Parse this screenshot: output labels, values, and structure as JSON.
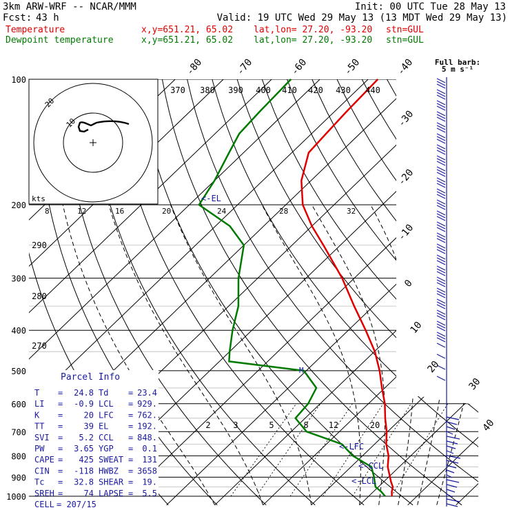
{
  "header": {
    "model": "3km ARW-WRF -- NCAR/MMM",
    "init": "Init: 00 UTC Tue 28 May 13",
    "fcst_label": "Fcst:",
    "fcst_value": "43 h",
    "valid": "Valid: 19 UTC Wed 29 May 13 (13 MDT Wed 29 May 13)"
  },
  "legend": {
    "temperature": {
      "label": "Temperature",
      "xy": "x,y=651.21, 65.02",
      "latlon": "lat,lon= 27.20, -93.20",
      "stn": "stn=GUL",
      "color": "#e00000"
    },
    "dewpoint": {
      "label": "Dewpoint temperature",
      "xy": "x,y=651.21, 65.02",
      "latlon": "lat,lon= 27.20, -93.20",
      "stn": "stn=GUL",
      "color": "#007a00"
    }
  },
  "barb_legend": {
    "title": "Full barb:",
    "unit": "5 m s⁻¹"
  },
  "hodograph": {
    "units": "kts",
    "ring_labels": [
      "10",
      "20"
    ],
    "scale_labels": [
      "8",
      "12",
      "16",
      "20",
      "24",
      "28",
      "32"
    ]
  },
  "parcel": {
    "title": "Parcel Info",
    "rows": [
      {
        "k1": "T",
        "v1": "24.8",
        "k2": "Td",
        "v2": "23.4"
      },
      {
        "k1": "LI",
        "v1": "-0.9",
        "k2": "LCL",
        "v2": "929."
      },
      {
        "k1": "K",
        "v1": "20",
        "k2": "LFC",
        "v2": "762."
      },
      {
        "k1": "TT",
        "v1": "39",
        "k2": "EL",
        "v2": "192."
      },
      {
        "k1": "SVI",
        "v1": "5.2",
        "k2": "CCL",
        "v2": "848."
      },
      {
        "k1": "PW",
        "v1": "3.65",
        "k2": "YGP",
        "v2": "0.1"
      },
      {
        "k1": "CAPE",
        "v1": "425",
        "k2": "SWEAT",
        "v2": "131"
      },
      {
        "k1": "CIN",
        "v1": "-118",
        "k2": "HWBZ",
        "v2": "3658"
      },
      {
        "k1": "Tc",
        "v1": "32.8",
        "k2": "SHEAR",
        "v2": "19."
      },
      {
        "k1": "SREH",
        "v1": "74",
        "k2": "LAPSE",
        "v2": "5.5"
      },
      {
        "k1": "CELL",
        "v1": "207/15",
        "k2": "",
        "v2": ""
      }
    ]
  },
  "levels": {
    "el": "<-EL",
    "lfc": "<-LFC",
    "ccl": "<-CCL",
    "lcl": "<-LCL"
  },
  "chart_data": {
    "type": "line",
    "pressure_labels": [
      "100",
      "200",
      "300",
      "400",
      "500",
      "600",
      "700",
      "800",
      "900",
      "1000"
    ],
    "pressure_levels": [
      100,
      200,
      250,
      300,
      350,
      400,
      450,
      500,
      550,
      600,
      650,
      700,
      750,
      800,
      850,
      900,
      950,
      1000
    ],
    "isotherm_labels": [
      "-80",
      "-70",
      "-60",
      "-50",
      "-40",
      "-30",
      "-20",
      "-10",
      "0",
      "10",
      "20",
      "30",
      "40"
    ],
    "isotherms": [
      -80,
      -70,
      -60,
      -50,
      -40,
      -30,
      -20,
      -10,
      0,
      10,
      20,
      30,
      40
    ],
    "theta_labels": [
      "370",
      "380",
      "390",
      "400",
      "410",
      "420",
      "430",
      "440",
      "290",
      "280",
      "270"
    ],
    "mixing_ratio_labels": [
      "2",
      "3",
      "5",
      "8",
      "12",
      "20"
    ],
    "mixing_ratios": [
      2,
      3,
      5,
      8,
      12,
      20
    ],
    "series": [
      {
        "name": "Temperature",
        "color": "#e00000",
        "p": [
          1000,
          975,
          950,
          925,
          900,
          850,
          800,
          750,
          700,
          650,
          600,
          550,
          500,
          450,
          400,
          350,
          300,
          250,
          225,
          200,
          175,
          150,
          135,
          120,
          100
        ],
        "t": [
          24.8,
          23.8,
          23.0,
          21.6,
          20.3,
          17.6,
          15.4,
          12.4,
          9.8,
          6.6,
          3.4,
          -0.6,
          -4.8,
          -9.9,
          -16.4,
          -24.0,
          -32.5,
          -43.5,
          -50.0,
          -56.5,
          -62.0,
          -66.5,
          -67.0,
          -67.5,
          -68.0
        ]
      },
      {
        "name": "Dewpoint temperature",
        "color": "#007a00",
        "p": [
          1000,
          975,
          950,
          925,
          900,
          850,
          800,
          750,
          700,
          650,
          600,
          550,
          500,
          475,
          450,
          400,
          350,
          300,
          250,
          225,
          200,
          175,
          150,
          135,
          120,
          100
        ],
        "t": [
          23.4,
          21.6,
          19.4,
          18.2,
          17.0,
          14.2,
          8.0,
          3.2,
          -6.8,
          -12.0,
          -12.5,
          -14.2,
          -20.5,
          -38.0,
          -40.0,
          -44.0,
          -48.0,
          -54.0,
          -60.0,
          -67.0,
          -78.0,
          -80.0,
          -83.0,
          -85.0,
          -85.5,
          -86.0
        ]
      }
    ]
  }
}
